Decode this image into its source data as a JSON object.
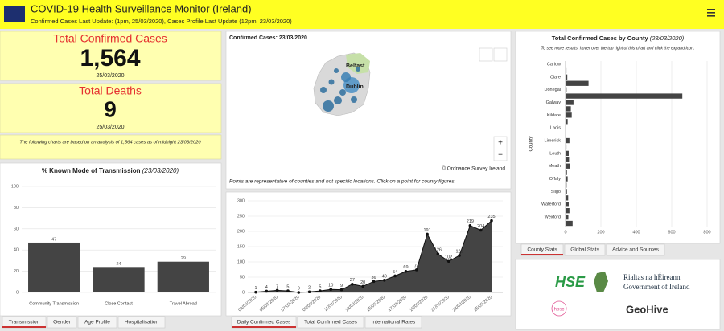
{
  "header": {
    "title": "COVID-19 Health Surveillance Monitor (Ireland)",
    "subtitle": "Confirmed Cases Last Update: (1pm, 25/03/2020), Cases Profile Last Update (12pm, 23/03/2020)"
  },
  "summary": {
    "cases_label": "Total Confirmed Cases",
    "cases": "1,564",
    "cases_date": "25/03/2020",
    "deaths_label": "Total Deaths",
    "deaths": "9",
    "deaths_date": "25/03/2020",
    "note": "The following charts are based on an analysis of 1,564 cases as of midnight 23/03/2020"
  },
  "map": {
    "title": "Confirmed Cases: 23/03/2020",
    "labels": [
      "Belfast",
      "Dublin"
    ],
    "credit": "© Ordnance Survey Ireland",
    "note": "Points are representative of counties and not specific locations. Click on a point for county figures."
  },
  "chart_data": [
    {
      "type": "bar",
      "title": "% Known Mode of Transmission",
      "title_date": "(23/03/2020)",
      "categories": [
        "Community Transmission",
        "Close Contact",
        "Travel Abroad"
      ],
      "values": [
        47,
        24,
        29
      ],
      "color": "#444444",
      "ylim": [
        0,
        100
      ],
      "yticks": [
        0,
        20,
        40,
        60,
        80,
        100
      ],
      "grid": true
    },
    {
      "type": "area",
      "categories": [
        "03/03/2020",
        null,
        "05/03/2020",
        null,
        "07/03/2020",
        null,
        "09/03/2020",
        null,
        "11/03/2020",
        null,
        "13/03/2020",
        null,
        "15/03/2020",
        null,
        "17/03/2020",
        null,
        "19/03/2020",
        null,
        "21/03/2020",
        null,
        "23/03/2020",
        null,
        "25/03/2020"
      ],
      "values": [
        1,
        4,
        7,
        5,
        0,
        2,
        5,
        10,
        9,
        27,
        20,
        36,
        40,
        54,
        69,
        74,
        191,
        126,
        102,
        121,
        219,
        204,
        235
      ],
      "color": "#444444",
      "ylim": [
        0,
        300
      ],
      "yticks": [
        0,
        50,
        100,
        150,
        200,
        250,
        300
      ],
      "grid": true
    },
    {
      "type": "barh",
      "title": "Total Confirmed Cases by County",
      "title_date": "(23/03/2020)",
      "subtitle": "To see more results, hover over the top right of this chart and click the expand icon.",
      "ylabel": "County",
      "categories": [
        "Carlow",
        null,
        "Clare",
        null,
        "Donegal",
        null,
        "Galway",
        null,
        "Kildare",
        null,
        "Laois",
        null,
        "Limerick",
        null,
        "Louth",
        null,
        "Meath",
        null,
        "Offaly",
        null,
        "Sligo",
        null,
        "Waterford",
        null,
        "Wexford",
        null
      ],
      "values": [
        1,
        5,
        10,
        130,
        6,
        660,
        45,
        30,
        35,
        12,
        4,
        2,
        22,
        5,
        18,
        20,
        25,
        8,
        12,
        6,
        8,
        15,
        18,
        22,
        16,
        40
      ],
      "color": "#444444",
      "xlim": [
        0,
        800
      ],
      "xticks": [
        0,
        200,
        400,
        600,
        800
      ],
      "grid": true
    }
  ],
  "tabs": {
    "transmission": [
      "Transmission",
      "Gender",
      "Age Profile",
      "Hospitalisation"
    ],
    "daily": [
      "Daily Confirmed Cases",
      "Total Confirmed Cases",
      "International Rates"
    ],
    "county": [
      "County Stats",
      "Global Stats",
      "Advice and Sources"
    ]
  },
  "logos": [
    "HSE",
    "hpsc",
    "Rialtas na hÉireann",
    "Government of Ireland",
    "GeoHive"
  ]
}
